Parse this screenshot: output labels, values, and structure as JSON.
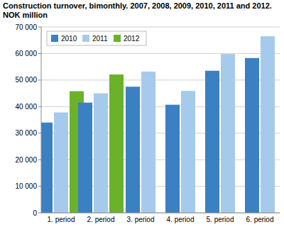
{
  "chart_data": {
    "type": "bar",
    "title": "Construction turnover, bimonthly. 2007, 2008, 2009, 2010, 2011 and 2012.",
    "subtitle": "NOK million",
    "categories": [
      "1. period",
      "2. period",
      "3. period",
      "4. period",
      "5. period",
      "6. period"
    ],
    "series": [
      {
        "name": "2010",
        "color": "#3a80c3",
        "values": [
          34000,
          41500,
          47500,
          40700,
          53500,
          58300
        ]
      },
      {
        "name": "2011",
        "color": "#a6caeb",
        "values": [
          37800,
          45000,
          53200,
          45900,
          59800,
          66500
        ]
      },
      {
        "name": "2012",
        "color": "#6cb12a",
        "values": [
          45800,
          52100,
          null,
          null,
          null,
          null
        ]
      }
    ],
    "ylim": [
      0,
      70000
    ],
    "yticks": [
      0,
      {
        "value": 10000,
        "label": "10 000"
      },
      {
        "value": 20000,
        "label": "20 000"
      },
      {
        "value": 30000,
        "label": "30 000"
      },
      {
        "value": 40000,
        "label": "40 000"
      },
      {
        "value": 50000,
        "label": "50 000"
      },
      {
        "value": 60000,
        "label": "60 000"
      },
      {
        "value": 70000,
        "label": "70 000"
      }
    ],
    "grid": true,
    "legend": "top-left"
  }
}
